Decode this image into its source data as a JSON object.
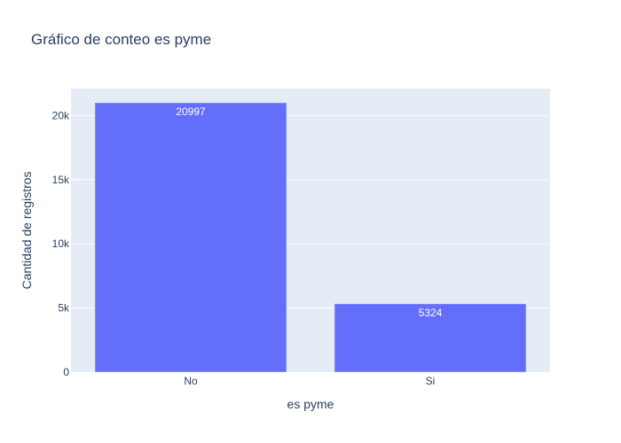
{
  "chart_data": {
    "type": "bar",
    "title": "Gráfico de conteo es pyme",
    "xlabel": "es pyme",
    "ylabel": "Cantidad de registros",
    "categories": [
      "No",
      "Si"
    ],
    "values": [
      20997,
      5324
    ],
    "value_labels": [
      "20997",
      "5324"
    ],
    "ylim": [
      0,
      22100
    ],
    "yticks": [
      0,
      5000,
      10000,
      15000,
      20000
    ],
    "ytick_labels": [
      "0",
      "5k",
      "10k",
      "15k",
      "20k"
    ],
    "grid": true,
    "colors": {
      "bar": "#636efa",
      "plot_bg": "#e5ecf6",
      "grid": "#ffffff",
      "text": "#2a3f5f"
    }
  }
}
